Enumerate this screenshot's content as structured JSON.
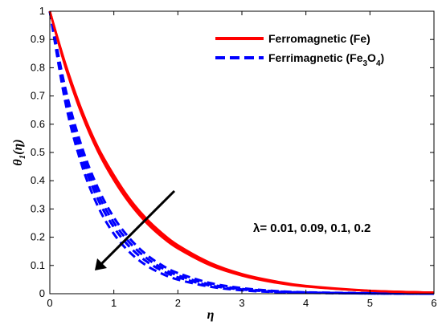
{
  "chart_data": {
    "type": "line",
    "xlabel": "η",
    "ylabel_main": "θ",
    "ylabel_sub": "1",
    "ylabel_arg": "(η)",
    "xlim": [
      0,
      6
    ],
    "ylim": [
      0,
      1
    ],
    "xticks": [
      0,
      1,
      2,
      3,
      4,
      5,
      6
    ],
    "yticks": [
      0,
      0.1,
      0.2,
      0.3,
      0.4,
      0.5,
      0.6,
      0.7,
      0.8,
      0.9,
      1
    ],
    "grid": false,
    "legend_position": "top-right",
    "annotation": "λ= 0.01, 0.09, 0.1, 0.2",
    "lambda_values": [
      0.01,
      0.09,
      0.1,
      0.2
    ],
    "series": [
      {
        "name": "Ferromagnetic (Fe)",
        "color": "#ff0000",
        "style": "solid",
        "curves": [
          {
            "x": [
              0,
              0.25,
              0.5,
              0.75,
              1,
              1.25,
              1.5,
              1.75,
              2,
              2.5,
              3,
              3.5,
              4,
              5,
              6
            ],
            "y": [
              1.0,
              0.81,
              0.65,
              0.52,
              0.42,
              0.335,
              0.268,
              0.215,
              0.172,
              0.11,
              0.07,
              0.045,
              0.028,
              0.011,
              0.004
            ]
          },
          {
            "x": [
              0,
              0.25,
              0.5,
              0.75,
              1,
              1.25,
              1.5,
              1.75,
              2,
              2.5,
              3,
              3.5,
              4,
              5,
              6
            ],
            "y": [
              1.0,
              0.806,
              0.645,
              0.515,
              0.414,
              0.33,
              0.263,
              0.21,
              0.168,
              0.107,
              0.068,
              0.043,
              0.027,
              0.01,
              0.004
            ]
          },
          {
            "x": [
              0,
              0.25,
              0.5,
              0.75,
              1,
              1.25,
              1.5,
              1.75,
              2,
              2.5,
              3,
              3.5,
              4,
              5,
              6
            ],
            "y": [
              1.0,
              0.802,
              0.64,
              0.51,
              0.408,
              0.325,
              0.258,
              0.206,
              0.164,
              0.104,
              0.066,
              0.042,
              0.026,
              0.01,
              0.004
            ]
          },
          {
            "x": [
              0,
              0.25,
              0.5,
              0.75,
              1,
              1.25,
              1.5,
              1.75,
              2,
              2.5,
              3,
              3.5,
              4,
              5,
              6
            ],
            "y": [
              1.0,
              0.797,
              0.634,
              0.504,
              0.402,
              0.319,
              0.253,
              0.201,
              0.16,
              0.101,
              0.064,
              0.04,
              0.025,
              0.01,
              0.004
            ]
          }
        ]
      },
      {
        "name": "Ferrimagnetic (Fe3O4)",
        "legend_base": "Ferrimagnetic (Fe",
        "legend_sub1": "3",
        "legend_mid": "O",
        "legend_sub2": "4",
        "legend_end": ")",
        "color": "#0000ff",
        "style": "dashed",
        "curves": [
          {
            "x": [
              0,
              0.25,
              0.5,
              0.75,
              1,
              1.25,
              1.5,
              1.75,
              2,
              2.5,
              3,
              3.5,
              4,
              5,
              6
            ],
            "y": [
              1.0,
              0.72,
              0.52,
              0.375,
              0.27,
              0.195,
              0.14,
              0.101,
              0.073,
              0.038,
              0.02,
              0.01,
              0.005,
              0.002,
              0.001
            ]
          },
          {
            "x": [
              0,
              0.25,
              0.5,
              0.75,
              1,
              1.25,
              1.5,
              1.75,
              2,
              2.5,
              3,
              3.5,
              4,
              5,
              6
            ],
            "y": [
              1.0,
              0.705,
              0.5,
              0.355,
              0.252,
              0.18,
              0.128,
              0.091,
              0.065,
              0.033,
              0.017,
              0.009,
              0.004,
              0.001,
              0.0
            ]
          },
          {
            "x": [
              0,
              0.25,
              0.5,
              0.75,
              1,
              1.25,
              1.5,
              1.75,
              2,
              2.5,
              3,
              3.5,
              4,
              5,
              6
            ],
            "y": [
              1.0,
              0.69,
              0.48,
              0.335,
              0.235,
              0.165,
              0.116,
              0.082,
              0.058,
              0.029,
              0.015,
              0.007,
              0.004,
              0.001,
              0.0
            ]
          },
          {
            "x": [
              0,
              0.25,
              0.5,
              0.75,
              1,
              1.25,
              1.5,
              1.75,
              2,
              2.5,
              3,
              3.5,
              4,
              5,
              6
            ],
            "y": [
              1.0,
              0.67,
              0.455,
              0.31,
              0.212,
              0.146,
              0.101,
              0.071,
              0.05,
              0.025,
              0.012,
              0.006,
              0.003,
              0.001,
              0.0
            ]
          }
        ]
      }
    ]
  }
}
